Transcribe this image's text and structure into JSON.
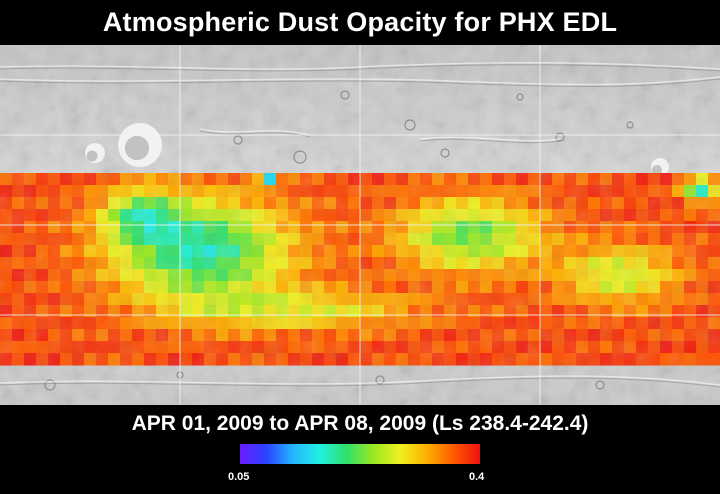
{
  "header": {
    "title": "Atmospheric Dust Opacity for PHX EDL"
  },
  "footer": {
    "date_range": "APR 01, 2009 to APR 08, 2009 (Ls 238.4-242.4)"
  },
  "legend": {
    "min_label": "0.05",
    "max_label": "0.4",
    "colors": [
      "#6a1bff",
      "#2a45ff",
      "#22b8ff",
      "#22f0e0",
      "#2de06a",
      "#9be820",
      "#f0f020",
      "#ffb000",
      "#ff5a00",
      "#ee1111"
    ]
  },
  "map": {
    "basemap": "shaded-relief",
    "coverage_band": "dust-opacity",
    "colors": {
      "basemap_light": "#d8d8d8",
      "basemap_dark": "#a8a8a8",
      "gridline": "#f4f4f4",
      "red": "#ee1a14",
      "orange": "#ff6a10",
      "yellow": "#e8e020",
      "green": "#3fd45a",
      "cyan": "#22d8d0",
      "blue": "#2a40ee"
    }
  }
}
